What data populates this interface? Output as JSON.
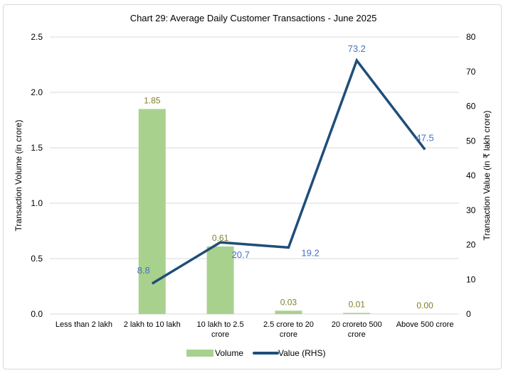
{
  "chart_data": {
    "type": "bar+line",
    "title": "Chart 29: Average Daily Customer Transactions - June 2025",
    "categories": [
      [
        "Less than 2 lakh"
      ],
      [
        "2 lakh to 10 lakh"
      ],
      [
        "10 lakh to 2.5",
        "crore"
      ],
      [
        "2.5 crore to 20",
        "crore"
      ],
      [
        "20 croreto 500",
        "crore"
      ],
      [
        "Above 500 crore"
      ]
    ],
    "series": [
      {
        "name": "Volume",
        "type": "bar",
        "axis": "left",
        "color": "#a9d18e",
        "label_color": "#7f7f2a",
        "values": [
          null,
          1.85,
          0.61,
          0.03,
          0.01,
          0.0
        ],
        "labels": [
          "",
          "1.85",
          "0.61",
          "0.03",
          "0.01",
          "0.00"
        ]
      },
      {
        "name": "Value (RHS)",
        "type": "line",
        "axis": "right",
        "color": "#1f4e79",
        "label_color": "#4472c4",
        "values": [
          null,
          8.8,
          20.7,
          19.2,
          73.2,
          47.5
        ],
        "labels": [
          "",
          "8.8",
          "20.7",
          "19.2",
          "73.2",
          "47.5"
        ]
      }
    ],
    "ylabel": "Transaction Volume (in crore)",
    "y2label": "Transaction Value (in ₹ lakh crore)",
    "ylim": [
      0,
      2.5
    ],
    "y2lim": [
      0,
      80
    ],
    "yticks": [
      "0.0",
      "0.5",
      "1.0",
      "1.5",
      "2.0",
      "2.5"
    ],
    "y2ticks": [
      "0",
      "10",
      "20",
      "30",
      "40",
      "50",
      "60",
      "70",
      "80"
    ],
    "grid": true,
    "legend": "bottom"
  }
}
